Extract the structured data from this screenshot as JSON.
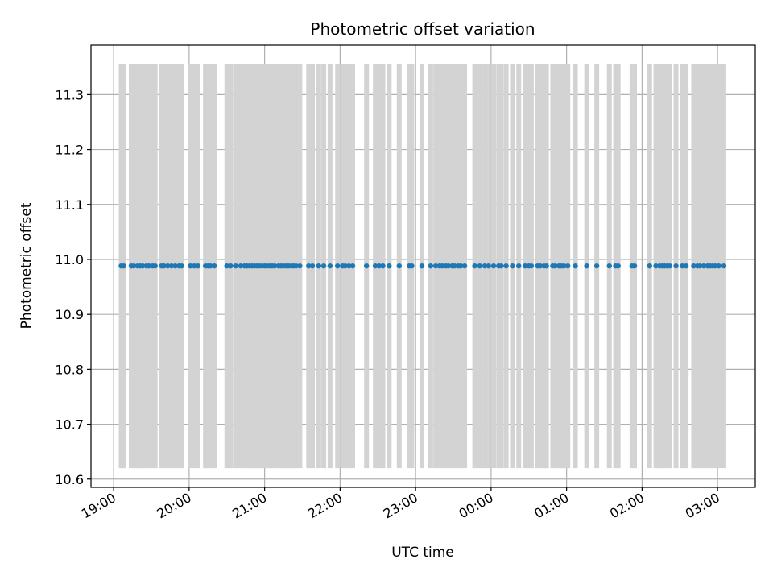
{
  "chart_data": {
    "type": "scatter",
    "title": "Photometric offset variation",
    "xlabel": "UTC time",
    "ylabel": "Photometric offset",
    "x_is_time": true,
    "xlim": [
      "18:42",
      "03:30"
    ],
    "ylim": [
      10.585,
      11.39
    ],
    "x_ticks": [
      "19:00",
      "20:00",
      "21:00",
      "22:00",
      "23:00",
      "00:00",
      "01:00",
      "02:00",
      "03:00"
    ],
    "y_ticks": [
      "10.6",
      "10.7",
      "10.8",
      "10.9",
      "11.0",
      "11.1",
      "11.2",
      "11.3"
    ],
    "grid": true,
    "legend": "none",
    "colors": {
      "points": "#1f77b4",
      "error_bars": "#d3d3d3",
      "grid": "#b0b0b0"
    },
    "series": [
      {
        "marker": "dot",
        "error_low": 10.62,
        "error_high": 11.355,
        "points": [
          {
            "x": "19:06",
            "y": 10.988
          },
          {
            "x": "19:08",
            "y": 10.988
          },
          {
            "x": "19:14",
            "y": 10.988
          },
          {
            "x": "19:16",
            "y": 10.988
          },
          {
            "x": "19:19",
            "y": 10.988
          },
          {
            "x": "19:21",
            "y": 10.988
          },
          {
            "x": "19:23",
            "y": 10.988
          },
          {
            "x": "19:26",
            "y": 10.988
          },
          {
            "x": "19:28",
            "y": 10.988
          },
          {
            "x": "19:31",
            "y": 10.988
          },
          {
            "x": "19:33",
            "y": 10.988
          },
          {
            "x": "19:38",
            "y": 10.988
          },
          {
            "x": "19:40",
            "y": 10.988
          },
          {
            "x": "19:43",
            "y": 10.988
          },
          {
            "x": "19:46",
            "y": 10.988
          },
          {
            "x": "19:49",
            "y": 10.988
          },
          {
            "x": "19:52",
            "y": 10.988
          },
          {
            "x": "19:54",
            "y": 10.988
          },
          {
            "x": "20:01",
            "y": 10.988
          },
          {
            "x": "20:04",
            "y": 10.988
          },
          {
            "x": "20:07",
            "y": 10.988
          },
          {
            "x": "20:13",
            "y": 10.988
          },
          {
            "x": "20:15",
            "y": 10.988
          },
          {
            "x": "20:17",
            "y": 10.988
          },
          {
            "x": "20:20",
            "y": 10.988
          },
          {
            "x": "20:30",
            "y": 10.988
          },
          {
            "x": "20:33",
            "y": 10.988
          },
          {
            "x": "20:37",
            "y": 10.988
          },
          {
            "x": "20:41",
            "y": 10.988
          },
          {
            "x": "20:44",
            "y": 10.988
          },
          {
            "x": "20:46",
            "y": 10.988
          },
          {
            "x": "20:48",
            "y": 10.988
          },
          {
            "x": "20:50",
            "y": 10.988
          },
          {
            "x": "20:52",
            "y": 10.988
          },
          {
            "x": "20:54",
            "y": 10.988
          },
          {
            "x": "20:56",
            "y": 10.988
          },
          {
            "x": "20:58",
            "y": 10.988
          },
          {
            "x": "21:00",
            "y": 10.988
          },
          {
            "x": "21:02",
            "y": 10.988
          },
          {
            "x": "21:04",
            "y": 10.988
          },
          {
            "x": "21:06",
            "y": 10.988
          },
          {
            "x": "21:08",
            "y": 10.988
          },
          {
            "x": "21:11",
            "y": 10.988
          },
          {
            "x": "21:13",
            "y": 10.988
          },
          {
            "x": "21:15",
            "y": 10.988
          },
          {
            "x": "21:17",
            "y": 10.988
          },
          {
            "x": "21:19",
            "y": 10.988
          },
          {
            "x": "21:21",
            "y": 10.988
          },
          {
            "x": "21:23",
            "y": 10.988
          },
          {
            "x": "21:25",
            "y": 10.988
          },
          {
            "x": "21:28",
            "y": 10.988
          },
          {
            "x": "21:35",
            "y": 10.988
          },
          {
            "x": "21:38",
            "y": 10.988
          },
          {
            "x": "21:43",
            "y": 10.988
          },
          {
            "x": "21:47",
            "y": 10.988
          },
          {
            "x": "21:52",
            "y": 10.988
          },
          {
            "x": "21:58",
            "y": 10.988
          },
          {
            "x": "22:02",
            "y": 10.988
          },
          {
            "x": "22:04",
            "y": 10.988
          },
          {
            "x": "22:07",
            "y": 10.988
          },
          {
            "x": "22:10",
            "y": 10.988
          },
          {
            "x": "22:21",
            "y": 10.988
          },
          {
            "x": "22:28",
            "y": 10.988
          },
          {
            "x": "22:31",
            "y": 10.988
          },
          {
            "x": "22:34",
            "y": 10.988
          },
          {
            "x": "22:39",
            "y": 10.988
          },
          {
            "x": "22:47",
            "y": 10.988
          },
          {
            "x": "22:55",
            "y": 10.988
          },
          {
            "x": "22:57",
            "y": 10.988
          },
          {
            "x": "23:05",
            "y": 10.988
          },
          {
            "x": "23:12",
            "y": 10.988
          },
          {
            "x": "23:16",
            "y": 10.988
          },
          {
            "x": "23:19",
            "y": 10.988
          },
          {
            "x": "23:21",
            "y": 10.988
          },
          {
            "x": "23:24",
            "y": 10.988
          },
          {
            "x": "23:26",
            "y": 10.988
          },
          {
            "x": "23:29",
            "y": 10.988
          },
          {
            "x": "23:31",
            "y": 10.988
          },
          {
            "x": "23:34",
            "y": 10.988
          },
          {
            "x": "23:36",
            "y": 10.988
          },
          {
            "x": "23:39",
            "y": 10.988
          },
          {
            "x": "23:47",
            "y": 10.988
          },
          {
            "x": "23:51",
            "y": 10.988
          },
          {
            "x": "23:55",
            "y": 10.988
          },
          {
            "x": "23:58",
            "y": 10.988
          },
          {
            "x": "00:02",
            "y": 10.988
          },
          {
            "x": "00:06",
            "y": 10.988
          },
          {
            "x": "00:08",
            "y": 10.988
          },
          {
            "x": "00:12",
            "y": 10.988
          },
          {
            "x": "00:17",
            "y": 10.988
          },
          {
            "x": "00:22",
            "y": 10.988
          },
          {
            "x": "00:27",
            "y": 10.988
          },
          {
            "x": "00:30",
            "y": 10.988
          },
          {
            "x": "00:32",
            "y": 10.988
          },
          {
            "x": "00:37",
            "y": 10.988
          },
          {
            "x": "00:39",
            "y": 10.988
          },
          {
            "x": "00:42",
            "y": 10.988
          },
          {
            "x": "00:44",
            "y": 10.988
          },
          {
            "x": "00:49",
            "y": 10.988
          },
          {
            "x": "00:51",
            "y": 10.988
          },
          {
            "x": "00:54",
            "y": 10.988
          },
          {
            "x": "00:56",
            "y": 10.988
          },
          {
            "x": "00:58",
            "y": 10.988
          },
          {
            "x": "01:01",
            "y": 10.988
          },
          {
            "x": "01:07",
            "y": 10.988
          },
          {
            "x": "01:16",
            "y": 10.988
          },
          {
            "x": "01:24",
            "y": 10.988
          },
          {
            "x": "01:34",
            "y": 10.988
          },
          {
            "x": "01:39",
            "y": 10.988
          },
          {
            "x": "01:41",
            "y": 10.988
          },
          {
            "x": "01:52",
            "y": 10.988
          },
          {
            "x": "01:54",
            "y": 10.988
          },
          {
            "x": "02:06",
            "y": 10.988
          },
          {
            "x": "02:11",
            "y": 10.988
          },
          {
            "x": "02:14",
            "y": 10.988
          },
          {
            "x": "02:16",
            "y": 10.988
          },
          {
            "x": "02:18",
            "y": 10.988
          },
          {
            "x": "02:20",
            "y": 10.988
          },
          {
            "x": "02:22",
            "y": 10.988
          },
          {
            "x": "02:27",
            "y": 10.988
          },
          {
            "x": "02:32",
            "y": 10.988
          },
          {
            "x": "02:35",
            "y": 10.988
          },
          {
            "x": "02:41",
            "y": 10.988
          },
          {
            "x": "02:44",
            "y": 10.988
          },
          {
            "x": "02:46",
            "y": 10.988
          },
          {
            "x": "02:49",
            "y": 10.988
          },
          {
            "x": "02:52",
            "y": 10.988
          },
          {
            "x": "02:54",
            "y": 10.988
          },
          {
            "x": "02:56",
            "y": 10.988
          },
          {
            "x": "02:58",
            "y": 10.988
          },
          {
            "x": "03:01",
            "y": 10.988
          },
          {
            "x": "03:05",
            "y": 10.988
          }
        ]
      }
    ]
  }
}
